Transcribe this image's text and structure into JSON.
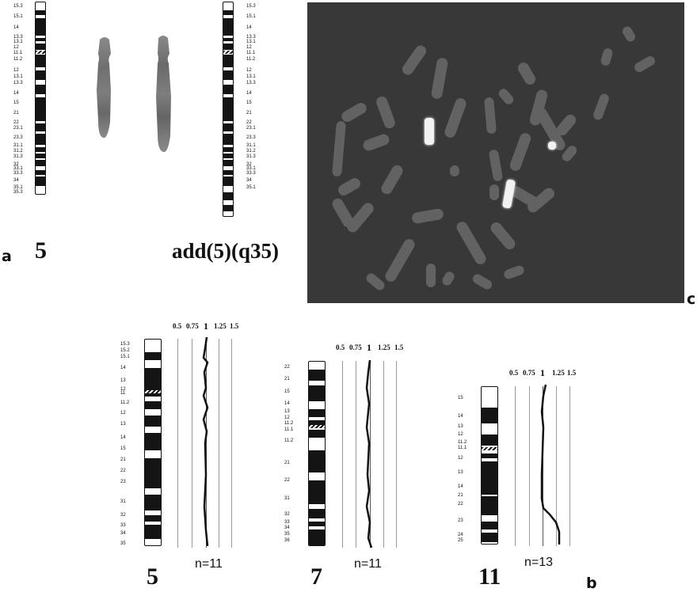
{
  "panel_a": {
    "label": "a",
    "normal_title": "5",
    "derivative_title": "add(5)(q35)",
    "band_labels_left": [
      "15.3",
      "15.1",
      "14",
      "13.3",
      "13.1",
      "12",
      "11.1",
      "11.2",
      "12",
      "13.1",
      "13.3",
      "14",
      "15",
      "21",
      "22",
      "23.1",
      "23.3",
      "31.1",
      "31.2",
      "31.3",
      "32",
      "33.1",
      "33.3",
      "34",
      "35.1",
      "35.3"
    ],
    "band_labels_right": [
      "15.3",
      "15.1",
      "14",
      "13.3",
      "13.1",
      "12",
      "11.1",
      "11.2",
      "12",
      "13.1",
      "13.3",
      "14",
      "15",
      "21",
      "22",
      "23.1",
      "23.3",
      "31.1",
      "31.2",
      "31.3",
      "32",
      "33.1",
      "33.3",
      "34",
      "35.1"
    ]
  },
  "panel_b": {
    "label": "b",
    "scale": [
      "0.5",
      "0.75",
      "1",
      "1.25",
      "1.5"
    ],
    "chromosomes": [
      {
        "title": "5",
        "n": "n=11",
        "bands": [
          "15.3",
          "15.2",
          "15.1",
          "14",
          "13",
          "12",
          "11",
          "11.2",
          "12",
          "13",
          "14",
          "15",
          "21",
          "22",
          "23",
          "31",
          "32",
          "33",
          "34",
          "35"
        ]
      },
      {
        "title": "7",
        "n": "n=11",
        "bands": [
          "22",
          "21",
          "15",
          "14",
          "13",
          "12",
          "11.2",
          "11.1",
          "11.2",
          "21",
          "22",
          "31",
          "32",
          "33",
          "34",
          "35",
          "36"
        ]
      },
      {
        "title": "11",
        "n": "n=13",
        "bands": [
          "15",
          "14",
          "13",
          "12",
          "11.2",
          "11.1",
          "12",
          "13",
          "14",
          "21",
          "22",
          "23",
          "24",
          "25"
        ]
      }
    ]
  },
  "panel_c": {
    "label": "c"
  }
}
